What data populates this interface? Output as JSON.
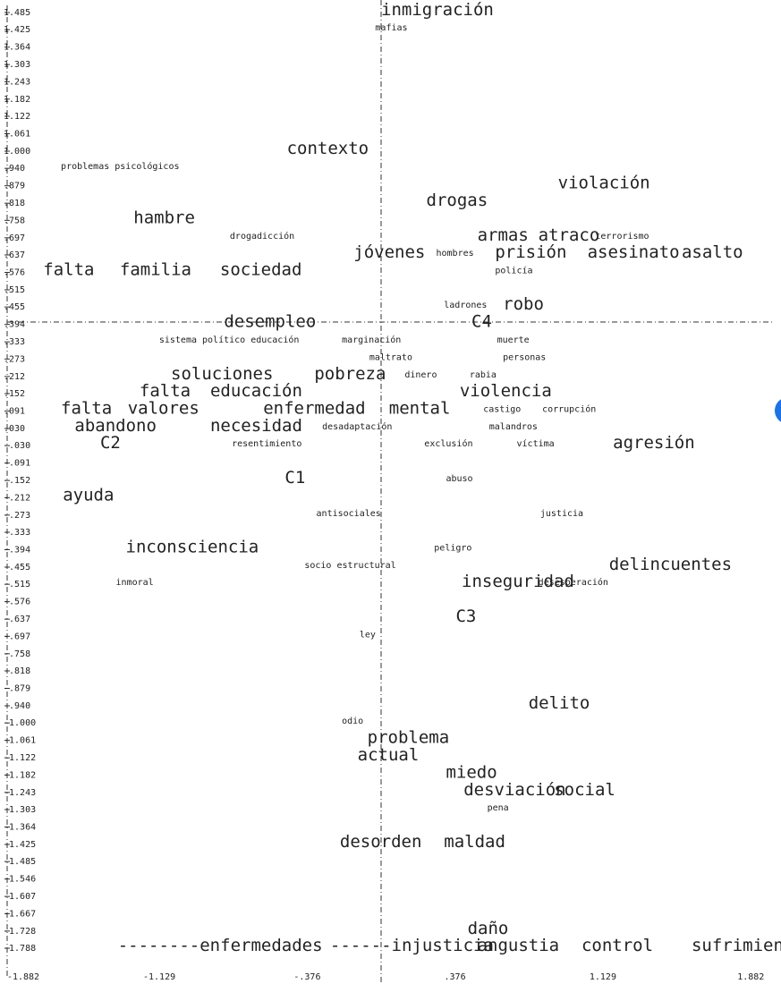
{
  "chart_data": {
    "type": "scatter",
    "grid": false,
    "xlim": [
      -1.882,
      1.882
    ],
    "x_ticks": [
      "-1.882",
      "-1.129",
      "-.376",
      ".376",
      "1.129",
      "1.882"
    ],
    "y_ticks": [
      "1.485",
      "1.425",
      "1.364",
      "1.303",
      "1.243",
      "1.182",
      "1.122",
      "1.061",
      "1.000",
      ".940",
      ".879",
      ".818",
      ".758",
      ".697",
      ".637",
      ".576",
      ".515",
      ".455",
      ".394",
      ".333",
      ".273",
      ".212",
      ".152",
      ".091",
      ".030",
      "-.030",
      "-.091",
      "-.152",
      "-.212",
      "-.273",
      "-.333",
      "-.394",
      "-.455",
      "-.515",
      "-.576",
      "-.637",
      "-.697",
      "-.758",
      "-.818",
      "-.879",
      "-.940",
      "-1.000",
      "-1.061",
      "-1.122",
      "-1.182",
      "-1.243",
      "-1.303",
      "-1.364",
      "-1.425",
      "-1.485",
      "-1.546",
      "-1.607",
      "-1.667",
      "-1.728",
      "-1.788"
    ],
    "points": [
      {
        "label": "inmigración",
        "x": 0.0,
        "y": 1.485,
        "size": "large"
      },
      {
        "label": "mafias",
        "x": -0.03,
        "y": 1.425,
        "size": "small"
      },
      {
        "label": "contexto",
        "x": -0.48,
        "y": 1.0,
        "size": "large"
      },
      {
        "label": "problemas psicológicos",
        "x": -1.63,
        "y": 0.94,
        "size": "small"
      },
      {
        "label": "violación",
        "x": 0.9,
        "y": 0.879,
        "size": "large"
      },
      {
        "label": "drogas",
        "x": 0.23,
        "y": 0.818,
        "size": "large"
      },
      {
        "label": "hambre",
        "x": -1.26,
        "y": 0.758,
        "size": "large"
      },
      {
        "label": "drogadicción",
        "x": -0.77,
        "y": 0.697,
        "size": "small"
      },
      {
        "label": "armas",
        "x": 0.49,
        "y": 0.697,
        "size": "large"
      },
      {
        "label": "atraco",
        "x": 0.8,
        "y": 0.697,
        "size": "large"
      },
      {
        "label": "terrorismo",
        "x": 1.09,
        "y": 0.697,
        "size": "small"
      },
      {
        "label": "jóvenes",
        "x": -0.14,
        "y": 0.637,
        "size": "large"
      },
      {
        "label": "hombres",
        "x": 0.28,
        "y": 0.637,
        "size": "small"
      },
      {
        "label": "prisión",
        "x": 0.58,
        "y": 0.637,
        "size": "large"
      },
      {
        "label": "asesinato",
        "x": 1.05,
        "y": 0.637,
        "size": "large"
      },
      {
        "label": "asalto",
        "x": 1.53,
        "y": 0.637,
        "size": "large"
      },
      {
        "label": "falta",
        "x": -1.72,
        "y": 0.576,
        "size": "large"
      },
      {
        "label": "familia",
        "x": -1.33,
        "y": 0.576,
        "size": "large"
      },
      {
        "label": "sociedad",
        "x": -0.82,
        "y": 0.576,
        "size": "large"
      },
      {
        "label": "policía",
        "x": 0.58,
        "y": 0.576,
        "size": "small"
      },
      {
        "label": "ladrones",
        "x": 0.32,
        "y": 0.455,
        "size": "small"
      },
      {
        "label": "robo",
        "x": 0.62,
        "y": 0.455,
        "size": "large"
      },
      {
        "label": "desempleo",
        "x": -0.8,
        "y": 0.394,
        "size": "large"
      },
      {
        "label": "C4",
        "x": 0.46,
        "y": 0.394,
        "size": "large"
      },
      {
        "label": "sistema político educación",
        "x": -1.13,
        "y": 0.333,
        "size": "small"
      },
      {
        "label": "marginación",
        "x": -0.2,
        "y": 0.333,
        "size": "small"
      },
      {
        "label": "muerte",
        "x": 0.59,
        "y": 0.333,
        "size": "small"
      },
      {
        "label": "maltrato",
        "x": -0.06,
        "y": 0.273,
        "size": "small"
      },
      {
        "label": "personas",
        "x": 0.62,
        "y": 0.273,
        "size": "small"
      },
      {
        "label": "soluciones",
        "x": -1.07,
        "y": 0.212,
        "size": "large"
      },
      {
        "label": "pobreza",
        "x": -0.34,
        "y": 0.212,
        "size": "large"
      },
      {
        "label": "dinero",
        "x": 0.12,
        "y": 0.212,
        "size": "small"
      },
      {
        "label": "rabia",
        "x": 0.45,
        "y": 0.212,
        "size": "small"
      },
      {
        "label": "falta",
        "x": -1.23,
        "y": 0.152,
        "size": "large"
      },
      {
        "label": "educación",
        "x": -0.87,
        "y": 0.152,
        "size": "large"
      },
      {
        "label": "violencia",
        "x": 0.4,
        "y": 0.152,
        "size": "large"
      },
      {
        "label": "falta",
        "x": -1.63,
        "y": 0.091,
        "size": "large"
      },
      {
        "label": "valores",
        "x": -1.29,
        "y": 0.091,
        "size": "large"
      },
      {
        "label": "enfermedad",
        "x": -0.6,
        "y": 0.091,
        "size": "large"
      },
      {
        "label": "mental",
        "x": 0.04,
        "y": 0.091,
        "size": "large"
      },
      {
        "label": "castigo",
        "x": 0.52,
        "y": 0.091,
        "size": "small"
      },
      {
        "label": "corrupción",
        "x": 0.82,
        "y": 0.091,
        "size": "small"
      },
      {
        "label": "abandono",
        "x": -1.56,
        "y": 0.03,
        "size": "large"
      },
      {
        "label": "necesidad",
        "x": -0.87,
        "y": 0.03,
        "size": "large"
      },
      {
        "label": "desadaptación",
        "x": -0.3,
        "y": 0.03,
        "size": "small"
      },
      {
        "label": "malandros",
        "x": 0.55,
        "y": 0.03,
        "size": "small"
      },
      {
        "label": "C2",
        "x": -1.43,
        "y": -0.03,
        "size": "large"
      },
      {
        "label": "resentimiento",
        "x": -0.76,
        "y": -0.03,
        "size": "small"
      },
      {
        "label": "exclusión",
        "x": 0.22,
        "y": -0.03,
        "size": "small"
      },
      {
        "label": "víctima",
        "x": 0.69,
        "y": -0.03,
        "size": "small"
      },
      {
        "label": "agresión",
        "x": 1.18,
        "y": -0.03,
        "size": "large"
      },
      {
        "label": "C1",
        "x": -0.49,
        "y": -0.152,
        "size": "large"
      },
      {
        "label": "abuso",
        "x": 0.33,
        "y": -0.152,
        "size": "small"
      },
      {
        "label": "ayuda",
        "x": -1.62,
        "y": -0.212,
        "size": "large"
      },
      {
        "label": "antisociales",
        "x": -0.33,
        "y": -0.273,
        "size": "small"
      },
      {
        "label": "justicia",
        "x": 0.81,
        "y": -0.273,
        "size": "small"
      },
      {
        "label": "inconsciencia",
        "x": -1.3,
        "y": -0.394,
        "size": "large"
      },
      {
        "label": "peligro",
        "x": 0.27,
        "y": -0.394,
        "size": "small"
      },
      {
        "label": "socio estructural",
        "x": -0.39,
        "y": -0.455,
        "size": "small"
      },
      {
        "label": "delincuentes",
        "x": 1.16,
        "y": -0.455,
        "size": "large"
      },
      {
        "label": "inmoral",
        "x": -1.35,
        "y": -0.515,
        "size": "small"
      },
      {
        "label": "inseguridad",
        "x": 0.41,
        "y": -0.515,
        "size": "large"
      },
      {
        "label": "desesperación",
        "x": 0.8,
        "y": -0.515,
        "size": "small"
      },
      {
        "label": "C3",
        "x": 0.38,
        "y": -0.637,
        "size": "large"
      },
      {
        "label": "ley",
        "x": -0.11,
        "y": -0.697,
        "size": "small"
      },
      {
        "label": "delito",
        "x": 0.75,
        "y": -0.94,
        "size": "large"
      },
      {
        "label": "odio",
        "x": -0.2,
        "y": -1.0,
        "size": "small"
      },
      {
        "label": "problema",
        "x": -0.07,
        "y": -1.061,
        "size": "large"
      },
      {
        "label": "actual",
        "x": -0.12,
        "y": -1.122,
        "size": "large"
      },
      {
        "label": "miedo",
        "x": 0.33,
        "y": -1.182,
        "size": "large"
      },
      {
        "label": "desviación",
        "x": 0.42,
        "y": -1.243,
        "size": "large"
      },
      {
        "label": "social",
        "x": 0.88,
        "y": -1.243,
        "size": "large"
      },
      {
        "label": "pena",
        "x": 0.54,
        "y": -1.303,
        "size": "small"
      },
      {
        "label": "desorden",
        "x": -0.21,
        "y": -1.425,
        "size": "large"
      },
      {
        "label": "maldad",
        "x": 0.32,
        "y": -1.425,
        "size": "large"
      },
      {
        "label": "daño",
        "x": 0.44,
        "y": -1.728,
        "size": "large"
      },
      {
        "label": "--------enfermedades",
        "x": -1.34,
        "y": -1.788,
        "size": "large"
      },
      {
        "label": "------injusticia",
        "x": -0.26,
        "y": -1.788,
        "size": "large"
      },
      {
        "label": "angustia",
        "x": 0.49,
        "y": -1.788,
        "size": "large"
      },
      {
        "label": "control",
        "x": 1.02,
        "y": -1.788,
        "size": "large"
      },
      {
        "label": "sufrimiento",
        "x": 1.58,
        "y": -1.788,
        "size": "large"
      }
    ]
  }
}
